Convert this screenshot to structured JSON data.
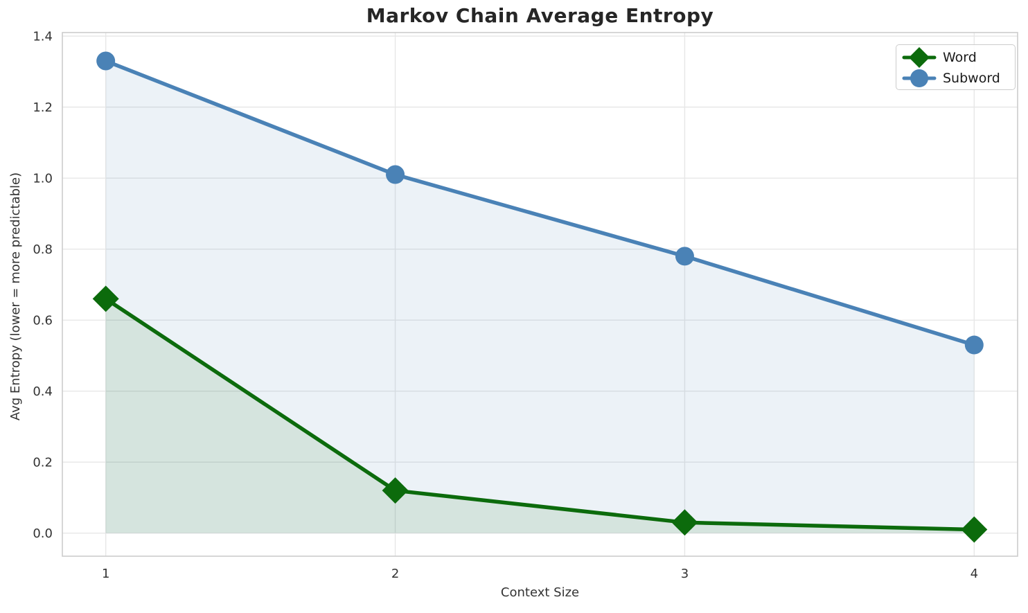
{
  "chart_data": {
    "type": "line",
    "title": "Markov Chain Average Entropy",
    "xlabel": "Context Size",
    "ylabel": "Avg Entropy (lower = more predictable)",
    "x": [
      1,
      2,
      3,
      4
    ],
    "series": [
      {
        "name": "Word",
        "values": [
          0.66,
          0.12,
          0.03,
          0.01
        ],
        "color": "#0c6b0c",
        "fill": "rgba(10,105,10,0.10)",
        "marker": "diamond"
      },
      {
        "name": "Subword",
        "values": [
          1.33,
          1.01,
          0.78,
          0.53
        ],
        "color": "#4a82b6",
        "fill": "rgba(70,130,180,0.10)",
        "marker": "circle"
      }
    ],
    "xticks": [
      1,
      2,
      3,
      4
    ],
    "xtick_labels": [
      "1",
      "2",
      "3",
      "4"
    ],
    "yticks": [
      0.0,
      0.2,
      0.4,
      0.6,
      0.8,
      1.0,
      1.2,
      1.4
    ],
    "ytick_labels": [
      "0.0",
      "0.2",
      "0.4",
      "0.6",
      "0.8",
      "1.0",
      "1.2",
      "1.4"
    ],
    "xlim": [
      0.85,
      4.15
    ],
    "ylim": [
      -0.065,
      1.41
    ],
    "grid": true,
    "fill_baseline": 0,
    "legend_position": "upper right"
  },
  "colors": {
    "grid": "#e7e7e7",
    "spine": "#cccccc",
    "tick_text": "#333333",
    "title_text": "#262626",
    "background": "#ffffff"
  }
}
